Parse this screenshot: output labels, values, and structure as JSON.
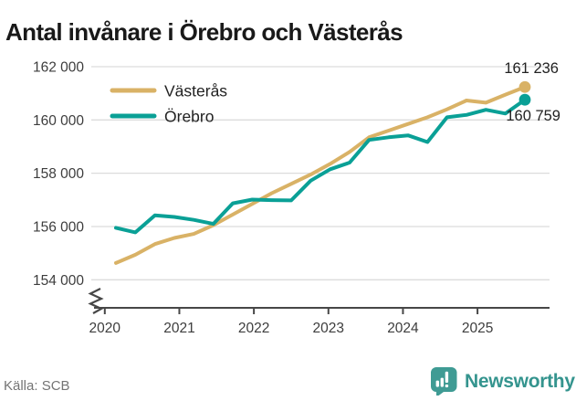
{
  "title": "Antal invånare i Örebro och Västerås",
  "source": "Källa: SCB",
  "logo": {
    "name": "Newsworthy"
  },
  "colors": {
    "vasteras": "#d9b266",
    "orebro": "#0aa096",
    "grid": "#dcdcdc",
    "axis": "#474747",
    "tick_text": "#3d3d3d",
    "label_text": "#222222",
    "muted_text": "#747474",
    "logo_teal": "#3f9b94",
    "title_color": "#191919"
  },
  "chart_data": {
    "type": "line",
    "title": "Antal invånare i Örebro och Västerås",
    "xlabel": "",
    "ylabel": "",
    "ylim": [
      154000,
      162000
    ],
    "y_axis_break": true,
    "grid": "horizontal",
    "legend_position": "top-left",
    "x_tick_labels": [
      "2020",
      "2021",
      "2022",
      "2023",
      "2024",
      "2025"
    ],
    "y_ticks": [
      154000,
      156000,
      158000,
      160000,
      162000
    ],
    "y_tick_labels": [
      "154 000",
      "156 000",
      "158 000",
      "160 000",
      "162 000"
    ],
    "x": [
      "2020 Q1",
      "2020 Q2",
      "2020 Q3",
      "2020 Q4",
      "2021 Q1",
      "2021 Q2",
      "2021 Q3",
      "2021 Q4",
      "2022 Q1",
      "2022 Q2",
      "2022 Q3",
      "2022 Q4",
      "2023 Q1",
      "2023 Q2",
      "2023 Q3",
      "2023 Q4",
      "2024 Q1",
      "2024 Q2",
      "2024 Q3",
      "2024 Q4",
      "2025 Q1",
      "2025 Q2"
    ],
    "series": [
      {
        "name": "Västerås",
        "color": "#d9b266",
        "end_label": "161 236",
        "end_value": 161236,
        "values": [
          154630,
          154940,
          155340,
          155570,
          155720,
          156050,
          156450,
          156850,
          157250,
          157600,
          157950,
          158350,
          158800,
          159350,
          159600,
          159850,
          160100,
          160400,
          160730,
          160650,
          160950,
          161236
        ]
      },
      {
        "name": "Örebro",
        "color": "#0aa096",
        "end_label": "160 759",
        "end_value": 160759,
        "values": [
          155950,
          155780,
          156420,
          156360,
          156250,
          156100,
          156870,
          157010,
          156990,
          156980,
          157720,
          158150,
          158400,
          159250,
          159350,
          159420,
          159170,
          160100,
          160190,
          160380,
          160240,
          160759
        ]
      }
    ]
  }
}
